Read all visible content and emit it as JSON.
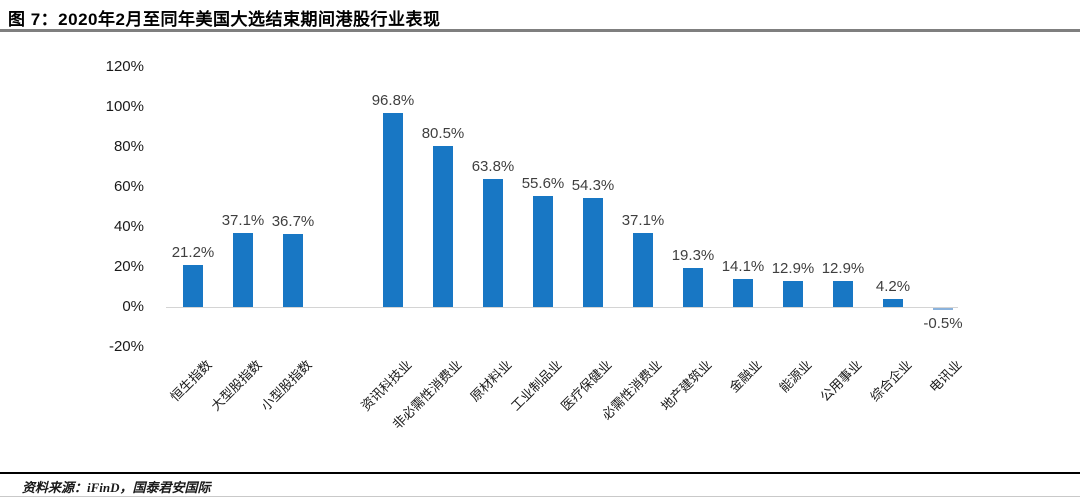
{
  "title": "图 7：2020年2月至同年美国大选结束期间港股行业表现",
  "source": "资料来源：iFinD，国泰君安国际",
  "colors": {
    "bar": "#1877C4",
    "bar_negative": "#8ab2dc",
    "value_label": "#3f3f3f",
    "axis_line": "#d4d4d4",
    "title_rule": "#7f7f7f"
  },
  "chart_data": {
    "type": "bar",
    "title": "2020年2月至同年美国大选结束期间港股行业表现",
    "categories": [
      "恒生指数",
      "大型股指数",
      "小型股指数",
      "资讯科技业",
      "非必需性消费业",
      "原材料业",
      "工业制品业",
      "医疗保健业",
      "必需性消费业",
      "地产建筑业",
      "金融业",
      "能源业",
      "公用事业",
      "综合企业",
      "电讯业"
    ],
    "values": [
      21.2,
      37.1,
      36.7,
      96.8,
      80.5,
      63.8,
      55.6,
      54.3,
      37.1,
      19.3,
      14.1,
      12.9,
      12.9,
      4.2,
      -0.5
    ],
    "value_labels": [
      "21.2%",
      "37.1%",
      "36.7%",
      "96.8%",
      "80.5%",
      "63.8%",
      "55.6%",
      "54.3%",
      "37.1%",
      "19.3%",
      "14.1%",
      "12.9%",
      "12.9%",
      "4.2%",
      "-0.5%"
    ],
    "ytick_labels": [
      "120%",
      "100%",
      "80%",
      "60%",
      "40%",
      "20%",
      "0%",
      "-20%"
    ],
    "ytick_values": [
      120,
      100,
      80,
      60,
      40,
      20,
      0,
      -20
    ],
    "ylim": [
      -20,
      120
    ],
    "xlabel": "",
    "ylabel": "",
    "grid": false,
    "legend": false,
    "gap_after_index": 2
  }
}
